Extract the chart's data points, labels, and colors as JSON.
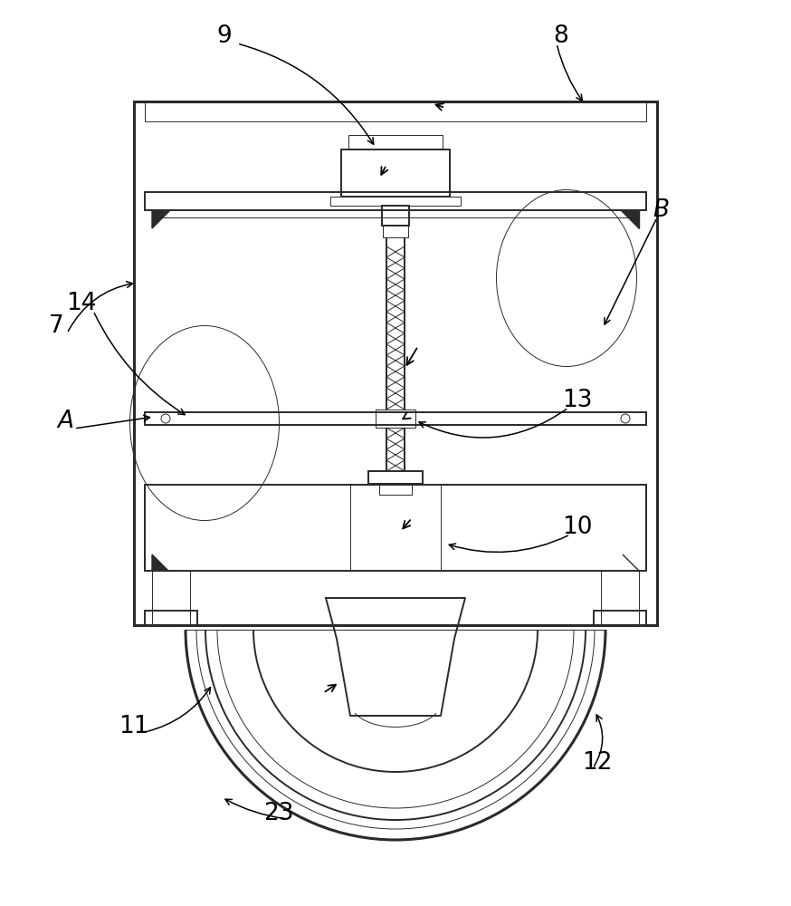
{
  "bg_color": "#ffffff",
  "line_color": "#2a2a2a",
  "lw_main": 1.4,
  "lw_thin": 0.7,
  "lw_thick": 2.2,
  "fig_width": 8.74,
  "fig_height": 10.0
}
